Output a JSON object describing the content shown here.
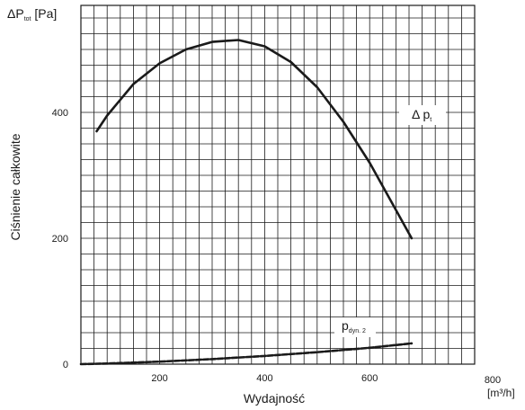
{
  "chart_data": {
    "type": "line",
    "x_axis": {
      "label": "Wydajność",
      "unit": "[m³/h]",
      "ticks": [
        200,
        400,
        600,
        800
      ],
      "range": [
        50,
        800
      ]
    },
    "y_axis": {
      "label": "Ciśnienie całkowite",
      "unit_main": "ΔP",
      "unit_sub": "tot",
      "unit_tail": " [Pa]",
      "ticks": [
        0,
        200,
        400
      ],
      "range": [
        0,
        570
      ]
    },
    "grid": true,
    "series": [
      {
        "name_main": "Δ p",
        "name_sub": "t",
        "style": "solid",
        "color": "#1a1a1a",
        "points": [
          [
            80,
            370
          ],
          [
            100,
            395
          ],
          [
            150,
            445
          ],
          [
            200,
            478
          ],
          [
            250,
            500
          ],
          [
            300,
            512
          ],
          [
            350,
            515
          ],
          [
            400,
            505
          ],
          [
            450,
            480
          ],
          [
            500,
            440
          ],
          [
            550,
            385
          ],
          [
            600,
            320
          ],
          [
            650,
            245
          ],
          [
            680,
            200
          ]
        ]
      },
      {
        "name_main": "p",
        "name_sub": "dyn. 2",
        "style": "dashed",
        "color": "#1a1a1a",
        "points": [
          [
            50,
            0
          ],
          [
            100,
            1
          ],
          [
            200,
            4
          ],
          [
            300,
            8
          ],
          [
            400,
            13
          ],
          [
            500,
            19
          ],
          [
            600,
            26
          ],
          [
            680,
            33
          ]
        ]
      }
    ]
  }
}
